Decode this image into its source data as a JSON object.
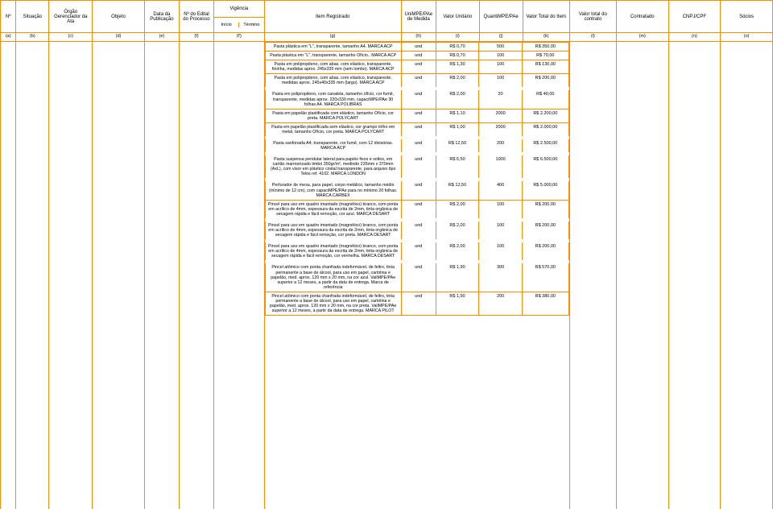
{
  "headers": {
    "n": "Nº",
    "situacao": "Situação",
    "orgao": "Órgão Gerenciador da Ata",
    "objeto": "Objeto",
    "data": "Data da Publicação",
    "nedital": "Nº do Edital do Processo",
    "vigencia": "Vigência",
    "vig_inicio": "Início",
    "vig_termino": "Término",
    "item": "Item Registrado",
    "unimpe": "UniMPE/PAe de Medida",
    "valorunit": "Valor Unitário",
    "quant": "QuantiMPE/PAe",
    "valortotalitem": "Valor Total do Item",
    "valortotalcontrato": "Valor total do contrato",
    "contratado": "Contratado",
    "cnpj": "CNPJ/CPF",
    "socios": "Sócios"
  },
  "letters": {
    "a": "(a)",
    "b": "(b)",
    "c": "(c)",
    "d": "(d)",
    "e": "(e)",
    "f": "(f)",
    "f2": "(f')",
    "g": "(g)",
    "h": "(h)",
    "i": "(i)",
    "j": "(j)",
    "k": "(k)",
    "l": "(l)",
    "m": "(m)",
    "n": "(n)",
    "o": "(o)"
  },
  "rows": [
    {
      "desc": "Pasta plástica em \"L\", transparente, tamanho A4. MARCA ACP",
      "uni": "und",
      "vu": "R$ 0,70",
      "qt": "500",
      "vt": "R$ 350,00"
    },
    {
      "desc": "Pasta plástica em \"L\", transparente, tamanho Ofício.. MARCA ACP",
      "uni": "und",
      "vu": "R$ 0,70",
      "qt": "100",
      "vt": "R$ 70,00"
    },
    {
      "desc": "Pasta em polipropileno, com abas, com elástico, transparente, fininha, medidas aprox. 245x335 mm (sem lombo). MARCA ACP",
      "uni": "und",
      "vu": "R$ 1,30",
      "qt": "100",
      "vt": "R$ 130,00"
    },
    {
      "desc": "Pasta em polipropileno, com abas, com elástico, transparente, medidas aprox. 245x40x335 mm (largo). MARCA ACP",
      "uni": "und",
      "vu": "R$ 2,00",
      "qt": "100",
      "vt": "R$ 200,00"
    },
    {
      "desc": "Pasta em polipropileno, com canaleta, tamanho ofício, cor fumê, transparente, medidas aprox. 220x330 mm, capaciMPE/PAe 30 folhas A4. MARCA POLIBRAS",
      "uni": "und",
      "vu": "R$ 2,00",
      "qt": "20",
      "vt": "R$ 40,00",
      "gap": true
    },
    {
      "desc": "Pasta em papelão plastificada com elástico, tamanho Ofício, cor preta. MARCA POLYCART",
      "uni": "und",
      "vu": "R$ 1,10",
      "qt": "2000",
      "vt": "R$ 2.200,00"
    },
    {
      "desc": "Pasta em papelão plastificada sem elástico, cor grampo trilho em metal, tamanho Ofício, cor preta. MARCA POLYCART",
      "uni": "und",
      "vu": "R$ 1,00",
      "qt": "2000",
      "vt": "R$ 2.000,00"
    },
    {
      "desc": "Pasta sanfonada A4, transparente, cor fumê, com 12 divisórias. MARCA ACP",
      "uni": "und",
      "vu": "R$ 12,50",
      "qt": "200",
      "vt": "R$ 2.500,00",
      "gap": true
    },
    {
      "desc": "Pasta suspensa pendular lateral para papéis fixos e soltos, em cartão marmorizado timbó 350gr/m², medindo 235mm x 370mm (AxL), com visor em plástico cristal transparente, para arquivo tipo Telos ref. 4102. MARCA LONDON",
      "uni": "und",
      "vu": "R$ 6,50",
      "qt": "1000",
      "vt": "R$ 6.500,00",
      "gap": true
    },
    {
      "desc": "Perfurador de mesa, para papel, corpo metálico, tamanho médio (mínimo de 12 cm), com capaciMPE/PAe para no mínimo 20 folhas. MARCA CARBEX",
      "uni": "und",
      "vu": "R$ 12,50",
      "qt": "400",
      "vt": "R$ 5.000,00",
      "gap": true
    },
    {
      "desc": "Pincel para uso em quadro imantado (magnético) branco, com ponta em acrílico de 4mm, espessura da escrita de 2mm, tinta orgânica de secagem rápida e fácil remoção, cor azul. MARCA DESART",
      "uni": "und",
      "vu": "R$ 2,00",
      "qt": "100",
      "vt": "R$ 200,00"
    },
    {
      "desc": "Pincel para uso em quadro imantado (magnético) branco, com ponta em acrílico de 4mm, espessura da escrita de 2mm, tinta orgânica de secagem rápida e fácil remoção, cor preta. MARCA DESART",
      "uni": "und",
      "vu": "R$ 2,00",
      "qt": "100",
      "vt": "R$ 200,00",
      "gap": true
    },
    {
      "desc": "Pincel para uso em quadro imantado (magnético) branco, com ponta em acrílico de 4mm, espessura da escrita de 2mm, tinta orgânica de secagem rápida e fácil remoção, cor vermelha. MARCA DESART",
      "uni": "und",
      "vu": "R$ 2,00",
      "qt": "100",
      "vt": "R$ 200,00",
      "gap": true
    },
    {
      "desc": "Pincel atômico com ponta chanfrada indeformável, de feltro, tinta permanente a base de álcool, para uso em papel, cartolina e papelão, med. aprox. 120 mm x 20 mm, na cor azul. ValiMPE/PAe superior a 12 meses, a partir da data de entrega. Marca de referência",
      "uni": "und",
      "vu": "R$ 1,90",
      "qt": "300",
      "vt": "R$ 570,00",
      "gap": true
    },
    {
      "desc": "Pincel atômico com ponta chanfrada indeformável, de feltro, tinta permanente a base de álcool, para uso em papel, cartolina e papelão, med. aprox. 120 mm x 20 mm, na cor preta. ValiMPE/PAe superior a 12 meses, a partir da data de entrega. MARCA PILOT",
      "uni": "und",
      "vu": "R$ 1,90",
      "qt": "200",
      "vt": "R$ 380,00"
    }
  ],
  "style": {
    "border_color": "#ff8c00",
    "background": "#ffffff",
    "text_color": "#000000",
    "header_fontsize": 6,
    "body_fontsize": 5.3
  }
}
